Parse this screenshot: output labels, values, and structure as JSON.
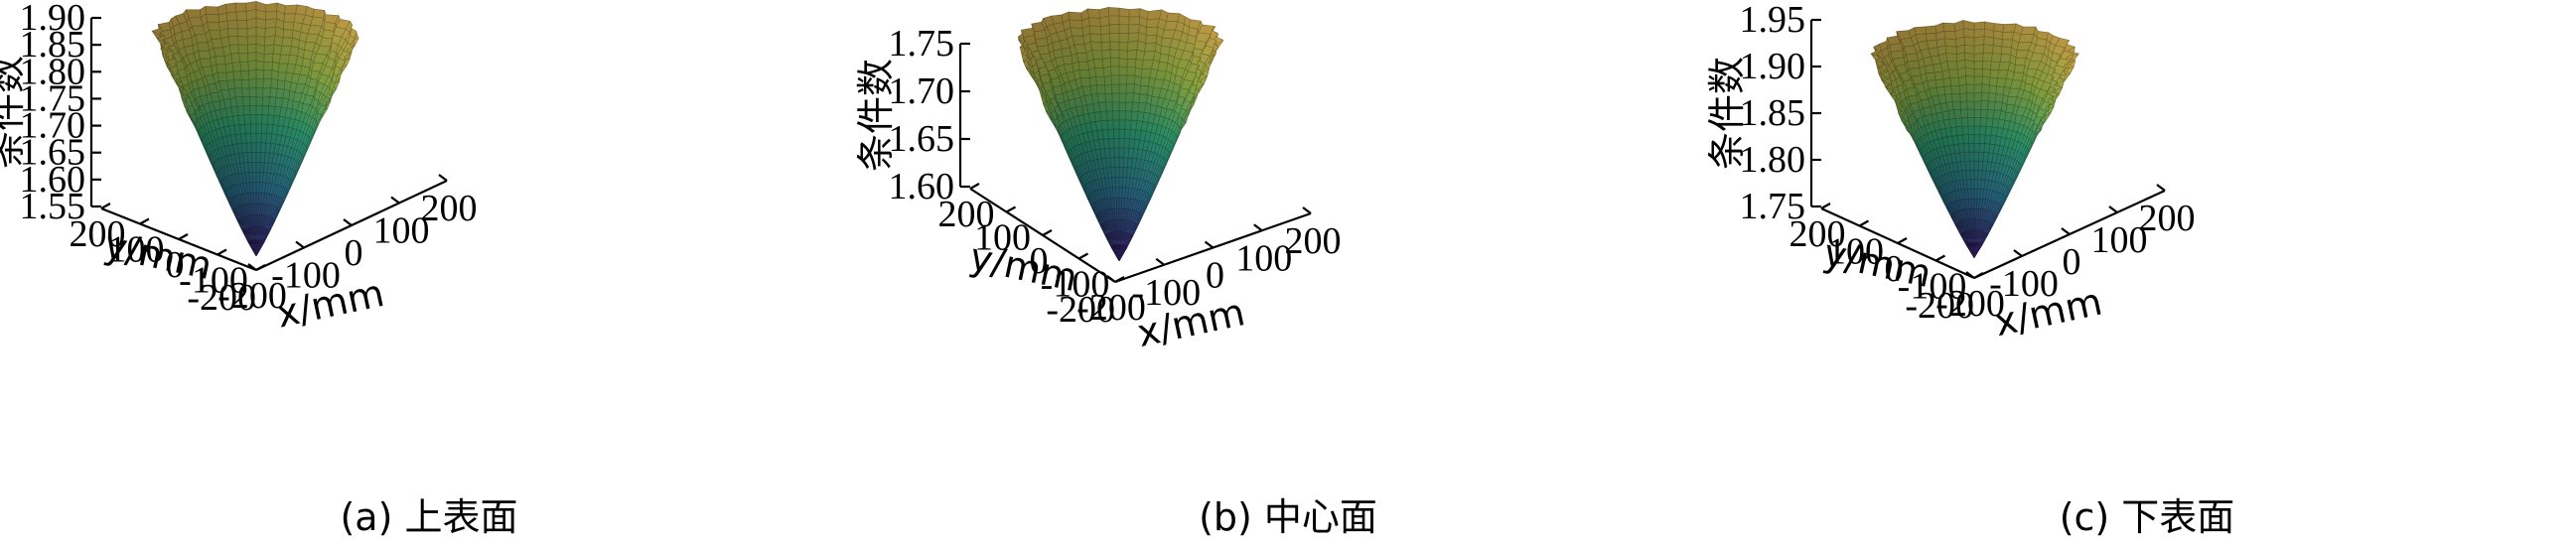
{
  "chart_data": [
    {
      "type": "surface3d",
      "caption": "(a) 上表面",
      "zlabel": "条件数",
      "xlabel": "x/mm",
      "ylabel": "y/mm",
      "xlim": [
        -200,
        200
      ],
      "ylim": [
        -200,
        200
      ],
      "zlim": [
        1.55,
        1.9
      ],
      "xticks": [
        "-200",
        "-100",
        "0",
        "100",
        "200"
      ],
      "yticks": [
        "200",
        "100",
        "0",
        "-100",
        "-200"
      ],
      "zticks": [
        "1.55",
        "1.60",
        "1.65",
        "1.70",
        "1.75",
        "1.80",
        "1.85",
        "1.90"
      ],
      "min_value": 1.55,
      "max_value": 1.88
    },
    {
      "type": "surface3d",
      "caption": "(b) 中心面",
      "zlabel": "条件数",
      "xlabel": "x/mm",
      "ylabel": "y/mm",
      "xlim": [
        -200,
        200
      ],
      "ylim": [
        -200,
        200
      ],
      "zlim": [
        1.6,
        1.75
      ],
      "xticks": [
        "-200",
        "-100",
        "0",
        "100",
        "200"
      ],
      "yticks": [
        "200",
        "100",
        "0",
        "-100",
        "-200"
      ],
      "zticks": [
        "1.60",
        "1.65",
        "1.70",
        "1.75"
      ],
      "min_value": 1.6,
      "max_value": 1.76
    },
    {
      "type": "surface3d",
      "caption": "(c) 下表面",
      "zlabel": "条件数",
      "xlabel": "x/mm",
      "ylabel": "y/mm",
      "xlim": [
        -200,
        200
      ],
      "ylim": [
        -200,
        200
      ],
      "zlim": [
        1.75,
        1.95
      ],
      "xticks": [
        "-200",
        "-100",
        "0",
        "100",
        "200"
      ],
      "yticks": [
        "200",
        "100",
        "0",
        "-100",
        "-200"
      ],
      "zticks": [
        "1.75",
        "1.80",
        "1.85",
        "1.90",
        "1.95"
      ],
      "min_value": 1.755,
      "max_value": 1.92
    }
  ],
  "colors": {
    "low": "#3b1f6e",
    "mid_low": "#2b6f8a",
    "mid": "#2e9a6e",
    "mid_high": "#8eaa43",
    "high": "#caa54a"
  }
}
